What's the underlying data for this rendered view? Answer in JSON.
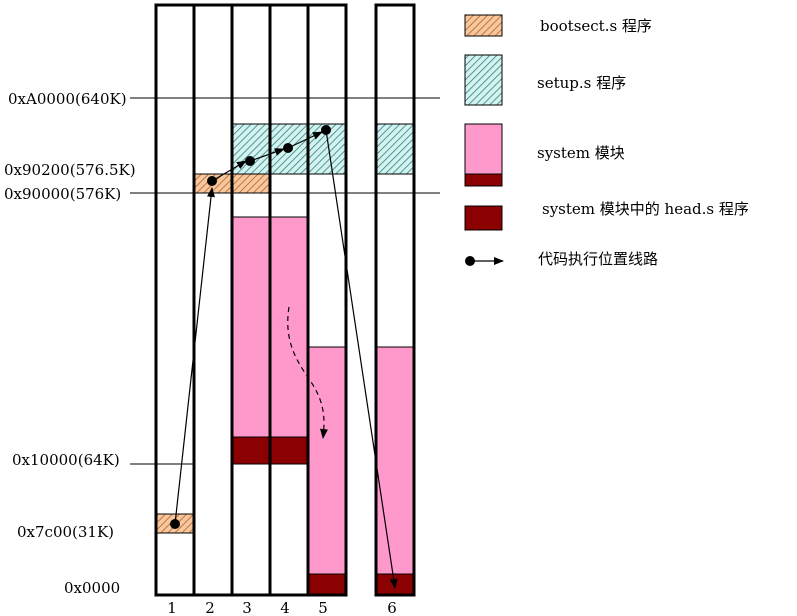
{
  "address_labels": {
    "a0000": "0xA0000(640K)",
    "x90200": "0x90200(576.5K)",
    "x90000": "0x90000(576K)",
    "x10000": "0x10000(64K)",
    "x7c00": "0x7c00(31K)",
    "x0000": "0x0000"
  },
  "column_labels": [
    "1",
    "2",
    "3",
    "4",
    "5",
    "6"
  ],
  "legend": {
    "bootsect": "bootsect.s 程序",
    "setup": "setup.s 程序",
    "system": "system 模块",
    "head": "system 模块中的 head.s 程序",
    "path": "代码执行位置线路"
  },
  "colors": {
    "bootsect_fill": "#f6c8a0",
    "bootsect_hatch": "#c9733a",
    "setup_fill": "#d4f2ee",
    "setup_hatch": "#2f7f86",
    "system": "#ff99cc",
    "head": "#8b0000",
    "line": "#000000"
  }
}
